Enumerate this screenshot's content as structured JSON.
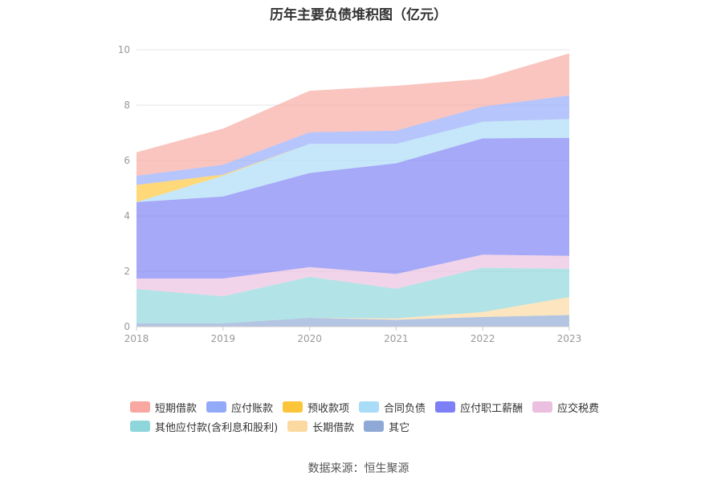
{
  "chart_data": {
    "type": "area",
    "stacked": true,
    "title": "历年主要负债堆积图（亿元）",
    "x": [
      "2018",
      "2019",
      "2020",
      "2021",
      "2022",
      "2023"
    ],
    "ylim": [
      0,
      10
    ],
    "yticks": [
      "0",
      "2",
      "4",
      "6",
      "8",
      "10"
    ],
    "grid": true,
    "legend_position": "bottom",
    "series": [
      {
        "name": "其它",
        "color": "#8fa9d6",
        "values": [
          0.12,
          0.12,
          0.32,
          0.25,
          0.35,
          0.42
        ]
      },
      {
        "name": "长期借款",
        "color": "#fbd9a0",
        "values": [
          0,
          0,
          0,
          0.05,
          0.18,
          0.65
        ]
      },
      {
        "name": "其他应付款(含利息和股利)",
        "color": "#8ed6da",
        "values": [
          1.24,
          0.98,
          1.48,
          1.07,
          1.6,
          1.02
        ]
      },
      {
        "name": "应交税费",
        "color": "#ebbfe0",
        "values": [
          0.38,
          0.64,
          0.35,
          0.53,
          0.47,
          0.47
        ]
      },
      {
        "name": "应付职工薪酬",
        "color": "#7c7ff5",
        "values": [
          2.76,
          2.96,
          3.4,
          4.0,
          4.2,
          4.26
        ]
      },
      {
        "name": "合同负债",
        "color": "#a9dcf6",
        "values": [
          0,
          0.75,
          1.05,
          0.7,
          0.6,
          0.68
        ]
      },
      {
        "name": "预收款项",
        "color": "#fdc53a",
        "values": [
          0.62,
          0.04,
          0,
          0,
          0,
          0
        ]
      },
      {
        "name": "应付账款",
        "color": "#93aaf9",
        "values": [
          0.33,
          0.36,
          0.42,
          0.48,
          0.55,
          0.85
        ]
      },
      {
        "name": "短期借款",
        "color": "#f8a8a0",
        "values": [
          0.85,
          1.3,
          1.5,
          1.62,
          1.0,
          1.52
        ]
      }
    ]
  },
  "legend": {
    "rows": [
      [
        {
          "label": "短期借款",
          "color": "#f8a8a0"
        },
        {
          "label": "应付账款",
          "color": "#93aaf9"
        },
        {
          "label": "预收款项",
          "color": "#fdc53a"
        },
        {
          "label": "合同负债",
          "color": "#a9dcf6"
        },
        {
          "label": "应付职工薪酬",
          "color": "#7c7ff5"
        },
        {
          "label": "应交税费",
          "color": "#ebbfe0"
        }
      ],
      [
        {
          "label": "其他应付款(含利息和股利)",
          "color": "#8ed6da"
        },
        {
          "label": "长期借款",
          "color": "#fbd9a0"
        },
        {
          "label": "其它",
          "color": "#8fa9d6"
        }
      ]
    ]
  },
  "source_note": "数据来源：恒生聚源"
}
